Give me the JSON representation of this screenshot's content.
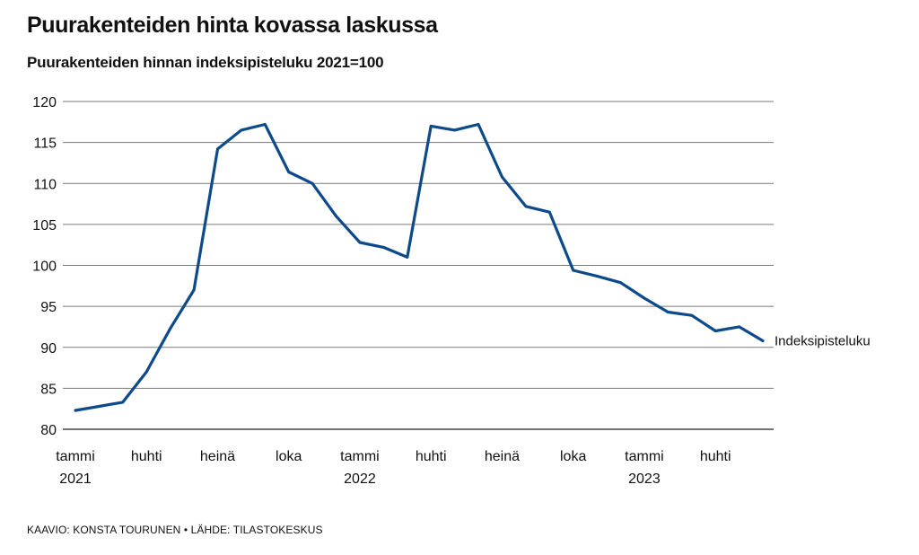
{
  "header": {
    "title": "Puurakenteiden hinta kovassa laskussa",
    "subtitle": "Puurakenteiden hinnan indeksipisteluku 2021=100"
  },
  "footer": {
    "source": "KAAVIO: KONSTA TOURUNEN • LÄHDE: TILASTOKESKUS"
  },
  "colors": {
    "line": "#0d4a8c",
    "grid": "#7a7a7a",
    "axis": "#222222"
  },
  "chart_data": {
    "type": "line",
    "title": "Puurakenteiden hinta kovassa laskussa",
    "subtitle": "Puurakenteiden hinnan indeksipisteluku 2021=100",
    "xlabel": "",
    "ylabel": "",
    "x": [
      "2021-01",
      "2021-02",
      "2021-03",
      "2021-04",
      "2021-05",
      "2021-06",
      "2021-07",
      "2021-08",
      "2021-09",
      "2021-10",
      "2021-11",
      "2021-12",
      "2022-01",
      "2022-02",
      "2022-03",
      "2022-04",
      "2022-05",
      "2022-06",
      "2022-07",
      "2022-08",
      "2022-09",
      "2022-10",
      "2022-11",
      "2022-12",
      "2023-01",
      "2023-02",
      "2023-03",
      "2023-04",
      "2023-05",
      "2023-06"
    ],
    "series": [
      {
        "name": "Indeksipisteluku",
        "values": [
          82.3,
          82.8,
          83.3,
          87.0,
          92.3,
          97.0,
          114.2,
          116.5,
          117.2,
          111.4,
          110.0,
          106.0,
          102.8,
          102.2,
          101.0,
          117.0,
          116.5,
          117.2,
          110.8,
          107.2,
          106.5,
          99.4,
          98.7,
          97.9,
          96.0,
          94.3,
          93.9,
          92.0,
          92.5,
          90.8
        ]
      }
    ],
    "ylim": [
      80,
      120
    ],
    "yticks": [
      80,
      85,
      90,
      95,
      100,
      105,
      110,
      115,
      120
    ],
    "xtick_labels": [
      {
        "x": "2021-01",
        "line1": "tammi",
        "line2": "2021"
      },
      {
        "x": "2021-04",
        "line1": "huhti",
        "line2": ""
      },
      {
        "x": "2021-07",
        "line1": "heinä",
        "line2": ""
      },
      {
        "x": "2021-10",
        "line1": "loka",
        "line2": ""
      },
      {
        "x": "2022-01",
        "line1": "tammi",
        "line2": "2022"
      },
      {
        "x": "2022-04",
        "line1": "huhti",
        "line2": ""
      },
      {
        "x": "2022-07",
        "line1": "heinä",
        "line2": ""
      },
      {
        "x": "2022-10",
        "line1": "loka",
        "line2": ""
      },
      {
        "x": "2023-01",
        "line1": "tammi",
        "line2": "2023"
      },
      {
        "x": "2023-04",
        "line1": "huhti",
        "line2": ""
      }
    ],
    "grid": true,
    "legend": "none",
    "series_label_position": "end-of-line"
  }
}
